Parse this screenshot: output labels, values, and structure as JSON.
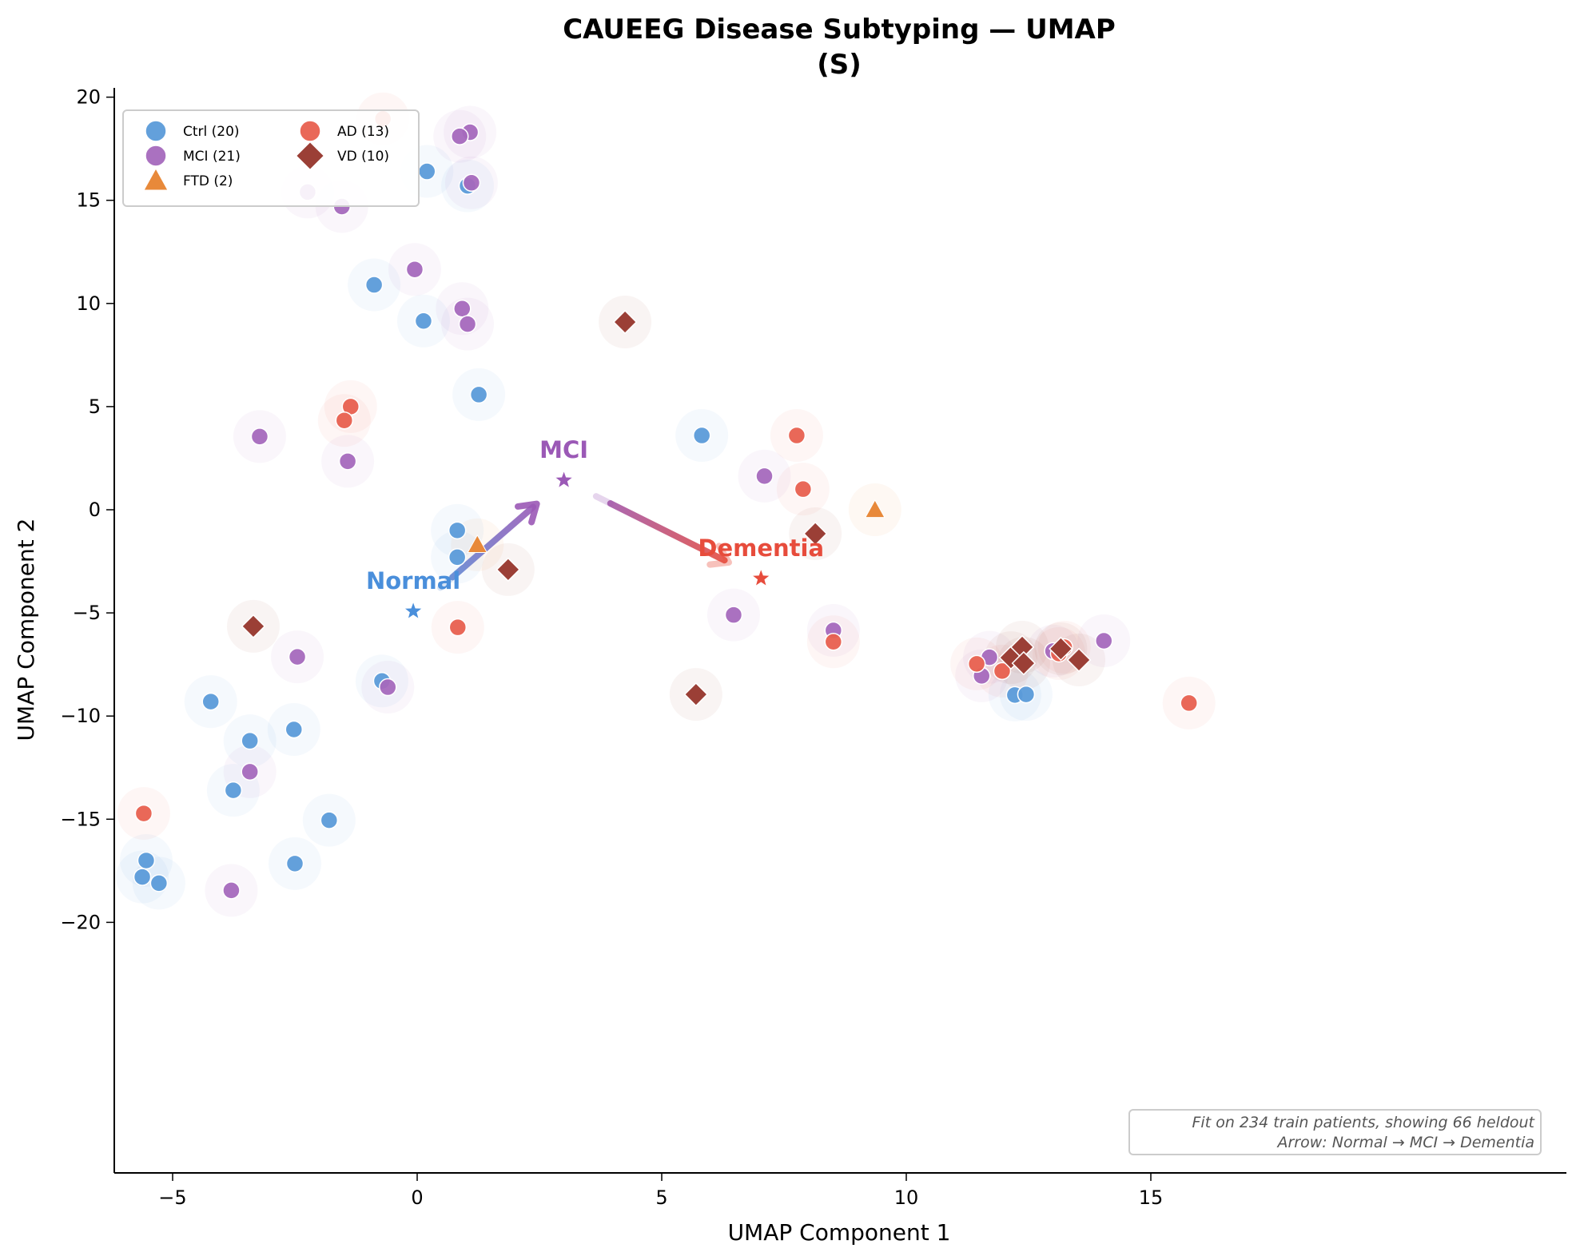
{
  "chart_data": {
    "type": "scatter",
    "title": "CAUEEG Disease Subtyping — UMAP",
    "subtitle": "(S)",
    "xlabel": "UMAP Component 1",
    "ylabel": "UMAP Component 2",
    "xlim": [
      -6.7,
      16.8
    ],
    "ylim": [
      -20.3,
      20.8
    ],
    "xticks": [
      -5,
      0,
      5,
      10,
      15
    ],
    "xtick_labels": [
      "−5",
      "0",
      "5",
      "10",
      "15"
    ],
    "yticks": [
      -20,
      -15,
      -10,
      -5,
      0,
      5,
      10,
      15,
      20
    ],
    "ytick_labels": [
      "−20",
      "−15",
      "−10",
      "−5",
      "0",
      "5",
      "10",
      "15",
      "20"
    ],
    "grid": false,
    "legend_position": "top-left",
    "series": [
      {
        "name": "Ctrl",
        "label": "Ctrl (20)",
        "color": "#5b9bd9",
        "marker": "circle",
        "points": [
          [
            0.2,
            16.4
          ],
          [
            1.03,
            15.7
          ],
          [
            -0.88,
            10.9
          ],
          [
            0.13,
            9.15
          ],
          [
            1.26,
            5.58
          ],
          [
            5.82,
            3.6
          ],
          [
            0.82,
            -1.0
          ],
          [
            0.82,
            -2.3
          ],
          [
            -0.72,
            -8.3
          ],
          [
            -4.22,
            -9.3
          ],
          [
            -2.52,
            -10.65
          ],
          [
            -3.42,
            -11.2
          ],
          [
            -3.76,
            -13.6
          ],
          [
            -1.8,
            -15.05
          ],
          [
            -2.5,
            -17.15
          ],
          [
            -5.54,
            -17.0
          ],
          [
            -5.62,
            -17.8
          ],
          [
            -5.28,
            -18.1
          ],
          [
            12.22,
            -8.98
          ],
          [
            12.45,
            -8.95
          ]
        ]
      },
      {
        "name": "MCI",
        "label": "MCI (21)",
        "color": "#a569bd",
        "marker": "circle",
        "points": [
          [
            1.08,
            18.3
          ],
          [
            0.87,
            18.1
          ],
          [
            1.11,
            15.85
          ],
          [
            -2.24,
            15.4
          ],
          [
            -1.54,
            14.7
          ],
          [
            -0.05,
            11.65
          ],
          [
            0.92,
            9.75
          ],
          [
            1.03,
            9.0
          ],
          [
            -3.22,
            3.55
          ],
          [
            -1.42,
            2.35
          ],
          [
            7.1,
            1.63
          ],
          [
            6.47,
            -5.1
          ],
          [
            8.51,
            -5.85
          ],
          [
            -2.45,
            -7.13
          ],
          [
            -0.6,
            -8.6
          ],
          [
            11.7,
            -7.15
          ],
          [
            11.54,
            -8.05
          ],
          [
            13.0,
            -6.85
          ],
          [
            14.04,
            -6.35
          ],
          [
            -3.42,
            -12.7
          ],
          [
            -3.8,
            -18.45
          ]
        ]
      },
      {
        "name": "FTD",
        "label": "FTD (2)",
        "color": "#e8893a",
        "marker": "triangle",
        "points": [
          [
            1.23,
            -1.7
          ],
          [
            9.36,
            0.0
          ]
        ]
      },
      {
        "name": "AD",
        "label": "AD (13)",
        "color": "#e8604f",
        "marker": "circle",
        "points": [
          [
            -0.7,
            18.95
          ],
          [
            -1.36,
            5.0
          ],
          [
            -1.49,
            4.33
          ],
          [
            7.76,
            3.6
          ],
          [
            7.89,
            1.0
          ],
          [
            0.83,
            -5.7
          ],
          [
            8.51,
            -6.4
          ],
          [
            -5.59,
            -14.72
          ],
          [
            11.44,
            -7.47
          ],
          [
            11.96,
            -7.82
          ],
          [
            13.12,
            -6.97
          ],
          [
            13.23,
            -6.66
          ],
          [
            15.78,
            -9.37
          ]
        ]
      },
      {
        "name": "VD",
        "label": "VD (10)",
        "color": "#9b3f36",
        "marker": "diamond",
        "points": [
          [
            4.25,
            9.1
          ],
          [
            1.86,
            -2.9
          ],
          [
            8.14,
            -1.16
          ],
          [
            -3.35,
            -5.65
          ],
          [
            5.7,
            -8.95
          ],
          [
            12.14,
            -7.17
          ],
          [
            12.37,
            -6.66
          ],
          [
            12.4,
            -7.44
          ],
          [
            13.16,
            -6.74
          ],
          [
            13.53,
            -7.28
          ]
        ]
      }
    ],
    "legend": [
      {
        "label": "Ctrl (20)",
        "series": 0
      },
      {
        "label": "MCI (21)",
        "series": 1
      },
      {
        "label": "FTD (2)",
        "series": 2
      },
      {
        "label": "AD (13)",
        "series": 3
      },
      {
        "label": "VD (10)",
        "series": 4
      }
    ],
    "centroids": [
      {
        "name": "Normal",
        "label": "Normal",
        "x": -0.08,
        "y": -4.92,
        "color": "#4a8fdb"
      },
      {
        "name": "MCI",
        "label": "MCI",
        "x": 3.0,
        "y": 1.43,
        "color": "#9b59b6"
      },
      {
        "name": "Dementia",
        "label": "Dementia",
        "x": 7.03,
        "y": -3.33,
        "color": "#e74c3c"
      }
    ],
    "arrows": [
      {
        "from": "Normal",
        "to": "MCI",
        "color_start": "#5b8ed6",
        "color_end": "#9b59b6"
      },
      {
        "from": "MCI",
        "to": "Dementia",
        "color_start": "#9b59b6",
        "color_end": "#e74c3c"
      }
    ],
    "annotation": {
      "line1": "Fit on 234 train patients, showing 66 heldout",
      "line2": "Arrow: Normal → MCI → Dementia",
      "position": "bottom-right"
    }
  }
}
